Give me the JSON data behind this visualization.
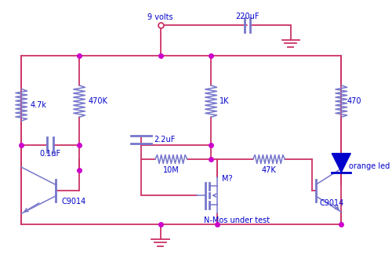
{
  "wire_color": "#cc3366",
  "comp_color": "#7777cc",
  "label_color": "#0000cc",
  "node_color": "#cc00cc",
  "bg_color": "#ffffff",
  "supply_label": "9 volts",
  "cap220_label": "220uF",
  "r1_label": "4.7k",
  "r2_label": "470K",
  "r3_label": "1K",
  "r4_label": "470",
  "r5_label": "10M",
  "r6_label": "47K",
  "cap1_label": "0.1uF",
  "cap2_label": "2.2uF",
  "led_label": "orange led",
  "t1_label": "C9014",
  "t2_label": "C9014",
  "mos_label": "M?",
  "mos_label2": "N-Mos under test"
}
